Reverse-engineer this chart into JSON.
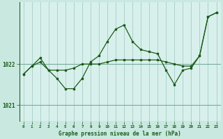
{
  "title": "Graphe pression niveau de la mer (hPa)",
  "bg_color": "#c8e8e0",
  "plot_bg_color": "#d8f0ec",
  "line_color": "#1a5c1a",
  "grid_color_v": "#a8ccc4",
  "grid_color_h": "#7aaa9a",
  "x_ticks": [
    0,
    1,
    2,
    3,
    4,
    5,
    6,
    7,
    8,
    9,
    10,
    11,
    12,
    13,
    14,
    15,
    16,
    17,
    18,
    19,
    20,
    21,
    22,
    23
  ],
  "y_ticks": [
    1021,
    1022
  ],
  "ylim": [
    1020.6,
    1023.5
  ],
  "xlim": [
    -0.5,
    23.5
  ],
  "series1_x": [
    0,
    1,
    2,
    3,
    4,
    5,
    6,
    7,
    8,
    9,
    10,
    11,
    12,
    13,
    14,
    15,
    16,
    17,
    18,
    19,
    20,
    21,
    22,
    23
  ],
  "series1_y": [
    1021.75,
    1021.95,
    1022.05,
    1021.85,
    1021.85,
    1021.85,
    1021.9,
    1022.0,
    1022.0,
    1022.0,
    1022.05,
    1022.1,
    1022.1,
    1022.1,
    1022.1,
    1022.1,
    1022.1,
    1022.05,
    1022.0,
    1021.95,
    1021.95,
    1022.2,
    1023.15,
    1023.25
  ],
  "series2_x": [
    0,
    1,
    2,
    3,
    4,
    5,
    6,
    7,
    8,
    9,
    10,
    11,
    12,
    13,
    14,
    15,
    16,
    17,
    18,
    19,
    20,
    21,
    22,
    23
  ],
  "series2_y": [
    1021.75,
    1021.95,
    1022.15,
    1021.85,
    1021.65,
    1021.4,
    1021.4,
    1021.65,
    1022.05,
    1022.2,
    1022.55,
    1022.85,
    1022.95,
    1022.55,
    1022.35,
    1022.3,
    1022.25,
    1021.85,
    1021.5,
    1021.85,
    1021.9,
    1022.2,
    1023.15,
    1023.25
  ]
}
